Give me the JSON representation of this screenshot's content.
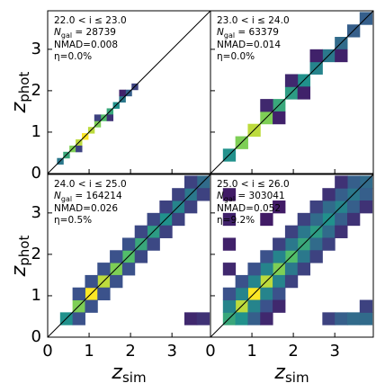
{
  "chart_data": [
    {
      "type": "hist2d",
      "xlim": [
        0,
        3.93
      ],
      "ylim": [
        0,
        3.93
      ],
      "xticks": [
        0,
        1,
        2,
        3
      ],
      "yticks": [
        0,
        1,
        2,
        3
      ],
      "xticklabels": false,
      "yticklabels": true,
      "ylabel": {
        "main": "z",
        "sub": "phot"
      },
      "annotations": {
        "range": "22.0 < i ≤ 23.0",
        "ngal": {
          "sym": "N",
          "sub": "gal",
          "rest": " = 28739"
        },
        "nmad": "NMAD=0.008",
        "eta": "η=0.0%"
      },
      "colormap": [
        "#440154",
        "#3b528b",
        "#21918c",
        "#5ec962",
        "#fde725"
      ],
      "bin": 0.15,
      "cells": [
        [
          0.3,
          0.3,
          0.4
        ],
        [
          0.45,
          0.45,
          0.6
        ],
        [
          0.6,
          0.6,
          0.8
        ],
        [
          0.75,
          0.75,
          0.9
        ],
        [
          0.9,
          0.9,
          1
        ],
        [
          1.05,
          1.05,
          0.9
        ],
        [
          1.2,
          1.2,
          0.8
        ],
        [
          1.35,
          1.35,
          0.7
        ],
        [
          1.5,
          1.5,
          0.6
        ],
        [
          1.65,
          1.65,
          0.5
        ],
        [
          1.8,
          1.8,
          0.4
        ],
        [
          1.95,
          1.95,
          0.3
        ],
        [
          2.1,
          2.1,
          0.2
        ],
        [
          0.75,
          0.6,
          0.2
        ],
        [
          1.2,
          1.35,
          0.2
        ],
        [
          1.5,
          1.35,
          0.15
        ],
        [
          1.8,
          1.95,
          0.1
        ]
      ]
    },
    {
      "type": "hist2d",
      "xlim": [
        0,
        3.93
      ],
      "ylim": [
        0,
        3.93
      ],
      "xticks": [
        0,
        1,
        2,
        3
      ],
      "yticks": [
        0,
        1,
        2,
        3
      ],
      "xticklabels": false,
      "yticklabels": false,
      "annotations": {
        "range": "23.0 < i ≤ 24.0",
        "ngal": {
          "sym": "N",
          "sub": "gal",
          "rest": " = 63379"
        },
        "nmad": "NMAD=0.014",
        "eta": "η=0.0%"
      },
      "colormap": [
        "#440154",
        "#3b528b",
        "#21918c",
        "#5ec962",
        "#fde725"
      ],
      "bin": 0.3,
      "cells": [
        [
          0.45,
          0.45,
          0.5
        ],
        [
          0.75,
          0.75,
          0.8
        ],
        [
          1.05,
          1.05,
          0.9
        ],
        [
          1.35,
          1.35,
          0.8
        ],
        [
          1.65,
          1.65,
          0.6
        ],
        [
          1.95,
          1.95,
          0.55
        ],
        [
          2.25,
          2.25,
          0.5
        ],
        [
          2.55,
          2.55,
          0.45
        ],
        [
          2.85,
          2.85,
          0.4
        ],
        [
          3.15,
          3.15,
          0.35
        ],
        [
          3.45,
          3.45,
          0.3
        ],
        [
          3.75,
          3.75,
          0.3
        ],
        [
          1.35,
          1.65,
          0.12
        ],
        [
          1.95,
          2.25,
          0.12
        ],
        [
          2.55,
          2.85,
          0.1
        ],
        [
          1.65,
          1.35,
          0.1
        ],
        [
          2.25,
          1.95,
          0.1
        ],
        [
          3.15,
          2.85,
          0.1
        ]
      ]
    },
    {
      "type": "hist2d",
      "xlim": [
        0,
        3.93
      ],
      "ylim": [
        0,
        3.93
      ],
      "xticks": [
        0,
        1,
        2,
        3
      ],
      "yticks": [
        0,
        1,
        2,
        3
      ],
      "xticklabels": true,
      "yticklabels": true,
      "xlabel": {
        "main": "z",
        "sub": "sim"
      },
      "ylabel": {
        "main": "z",
        "sub": "phot"
      },
      "annotations": {
        "range": "24.0 < i ≤ 25.0",
        "ngal": {
          "sym": "N",
          "sub": "gal",
          "rest": " = 164214"
        },
        "nmad": "NMAD=0.026",
        "eta": "η=0.5%"
      },
      "colormap": [
        "#440154",
        "#3b528b",
        "#21918c",
        "#5ec962",
        "#fde725"
      ],
      "bin": 0.3,
      "cells": [
        [
          0.45,
          0.45,
          0.5
        ],
        [
          0.75,
          0.75,
          0.8
        ],
        [
          1.05,
          1.05,
          1
        ],
        [
          1.35,
          1.35,
          0.9
        ],
        [
          1.65,
          1.65,
          0.8
        ],
        [
          1.95,
          1.95,
          0.7
        ],
        [
          2.25,
          2.25,
          0.6
        ],
        [
          2.55,
          2.55,
          0.55
        ],
        [
          2.85,
          2.85,
          0.5
        ],
        [
          3.15,
          3.15,
          0.45
        ],
        [
          3.45,
          3.45,
          0.4
        ],
        [
          3.75,
          3.75,
          0.35
        ],
        [
          0.75,
          1.05,
          0.25
        ],
        [
          1.05,
          1.35,
          0.25
        ],
        [
          1.35,
          1.65,
          0.25
        ],
        [
          1.65,
          1.95,
          0.25
        ],
        [
          1.95,
          2.25,
          0.25
        ],
        [
          2.25,
          2.55,
          0.22
        ],
        [
          2.55,
          2.85,
          0.22
        ],
        [
          2.85,
          3.15,
          0.2
        ],
        [
          3.15,
          3.45,
          0.2
        ],
        [
          3.45,
          3.75,
          0.2
        ],
        [
          0.75,
          0.45,
          0.25
        ],
        [
          1.05,
          0.75,
          0.25
        ],
        [
          1.35,
          1.05,
          0.25
        ],
        [
          1.65,
          1.35,
          0.25
        ],
        [
          1.95,
          1.65,
          0.25
        ],
        [
          2.25,
          1.95,
          0.22
        ],
        [
          2.55,
          2.25,
          0.22
        ],
        [
          2.85,
          2.55,
          0.2
        ],
        [
          3.15,
          2.85,
          0.2
        ],
        [
          3.45,
          3.15,
          0.2
        ],
        [
          3.75,
          3.45,
          0.2
        ],
        [
          3.45,
          0.45,
          0.12
        ],
        [
          3.75,
          0.45,
          0.15
        ]
      ]
    },
    {
      "type": "hist2d",
      "xlim": [
        0,
        3.93
      ],
      "ylim": [
        0,
        3.93
      ],
      "xticks": [
        0,
        1,
        2,
        3
      ],
      "yticks": [
        0,
        1,
        2,
        3
      ],
      "xticklabels": true,
      "yticklabels": false,
      "xlabel": {
        "main": "z",
        "sub": "sim"
      },
      "annotations": {
        "range": "25.0 < i ≤ 26.0",
        "ngal": {
          "sym": "N",
          "sub": "gal",
          "rest": " = 303041"
        },
        "nmad": "NMAD=0.052",
        "eta": "η=9.2%"
      },
      "colormap": [
        "#440154",
        "#3b528b",
        "#21918c",
        "#5ec962",
        "#fde725"
      ],
      "bin": 0.3,
      "cells": [
        [
          0.45,
          0.45,
          0.6
        ],
        [
          0.75,
          0.75,
          0.9
        ],
        [
          1.05,
          1.05,
          1
        ],
        [
          1.35,
          1.35,
          0.9
        ],
        [
          1.65,
          1.65,
          0.8
        ],
        [
          1.95,
          1.95,
          0.7
        ],
        [
          2.25,
          2.25,
          0.6
        ],
        [
          2.55,
          2.55,
          0.55
        ],
        [
          2.85,
          2.85,
          0.5
        ],
        [
          3.15,
          3.15,
          0.45
        ],
        [
          3.45,
          3.45,
          0.4
        ],
        [
          3.75,
          3.75,
          0.35
        ],
        [
          0.45,
          0.75,
          0.45
        ],
        [
          0.75,
          1.05,
          0.45
        ],
        [
          1.05,
          1.35,
          0.45
        ],
        [
          1.35,
          1.65,
          0.45
        ],
        [
          1.65,
          1.95,
          0.45
        ],
        [
          1.95,
          2.25,
          0.4
        ],
        [
          2.25,
          2.55,
          0.4
        ],
        [
          2.55,
          2.85,
          0.35
        ],
        [
          2.85,
          3.15,
          0.35
        ],
        [
          3.15,
          3.45,
          0.3
        ],
        [
          3.45,
          3.75,
          0.3
        ],
        [
          0.75,
          0.45,
          0.5
        ],
        [
          1.05,
          0.75,
          0.45
        ],
        [
          1.35,
          1.05,
          0.45
        ],
        [
          1.65,
          1.35,
          0.45
        ],
        [
          1.95,
          1.65,
          0.4
        ],
        [
          2.25,
          1.95,
          0.4
        ],
        [
          2.55,
          2.25,
          0.35
        ],
        [
          2.85,
          2.55,
          0.35
        ],
        [
          3.15,
          2.85,
          0.3
        ],
        [
          3.45,
          3.15,
          0.3
        ],
        [
          3.75,
          3.45,
          0.3
        ],
        [
          0.45,
          1.05,
          0.25
        ],
        [
          0.75,
          1.35,
          0.25
        ],
        [
          1.05,
          1.65,
          0.25
        ],
        [
          1.35,
          1.95,
          0.25
        ],
        [
          1.65,
          2.25,
          0.2
        ],
        [
          1.95,
          2.55,
          0.2
        ],
        [
          2.25,
          2.85,
          0.2
        ],
        [
          2.55,
          3.15,
          0.2
        ],
        [
          2.85,
          3.45,
          0.15
        ],
        [
          3.15,
          3.75,
          0.15
        ],
        [
          1.05,
          0.45,
          0.3
        ],
        [
          1.35,
          0.75,
          0.25
        ],
        [
          1.65,
          1.05,
          0.25
        ],
        [
          1.95,
          1.35,
          0.2
        ],
        [
          2.25,
          1.65,
          0.2
        ],
        [
          2.55,
          1.95,
          0.2
        ],
        [
          2.85,
          2.25,
          0.2
        ],
        [
          3.15,
          2.55,
          0.15
        ],
        [
          3.45,
          2.85,
          0.15
        ],
        [
          3.75,
          3.15,
          0.15
        ],
        [
          2.85,
          0.45,
          0.2
        ],
        [
          3.15,
          0.45,
          0.3
        ],
        [
          3.45,
          0.45,
          0.35
        ],
        [
          3.75,
          0.45,
          0.35
        ],
        [
          3.75,
          0.75,
          0.2
        ],
        [
          0.45,
          1.65,
          0.12
        ],
        [
          0.45,
          2.25,
          0.1
        ],
        [
          0.45,
          2.85,
          0.1
        ],
        [
          0.45,
          3.45,
          0.08
        ],
        [
          1.35,
          2.85,
          0.08
        ],
        [
          1.65,
          3.15,
          0.08
        ],
        [
          1.35,
          0.45,
          0.12
        ],
        [
          1.65,
          0.75,
          0.12
        ]
      ]
    }
  ]
}
